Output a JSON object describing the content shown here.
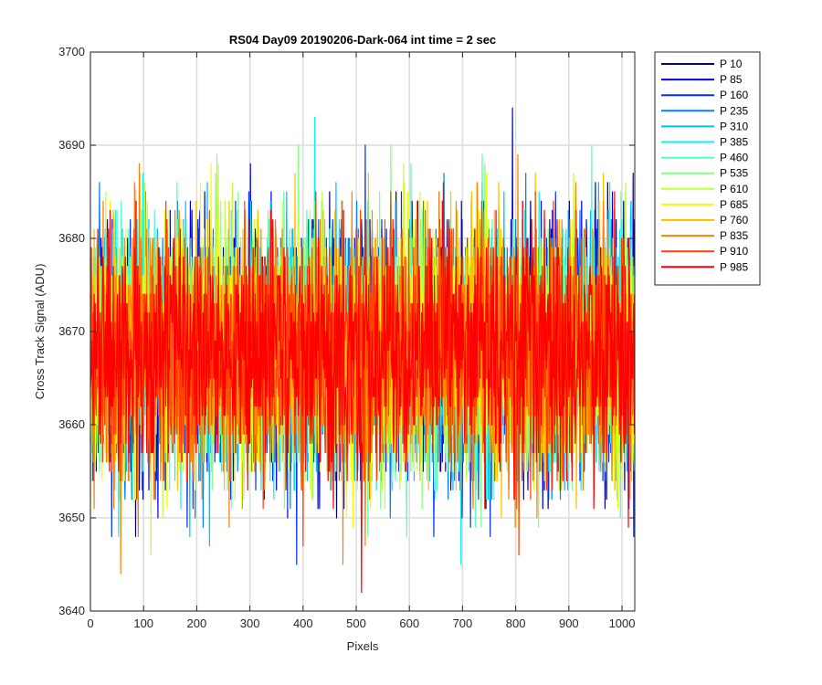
{
  "chart_data": {
    "type": "line",
    "title": "RS04 Day09 20190206-Dark-064 int time = 2 sec",
    "xlabel": "Pixels",
    "ylabel": "Cross Track Signal (ADU)",
    "xlim": [
      0,
      1024
    ],
    "ylim": [
      3640,
      3700
    ],
    "x_ticks": [
      0,
      100,
      200,
      300,
      400,
      500,
      600,
      700,
      800,
      900,
      1000
    ],
    "y_ticks": [
      3640,
      3650,
      3660,
      3670,
      3680,
      3690,
      3700
    ],
    "grid": true,
    "legend_position": "outside-right-top",
    "x_count": 1024,
    "noise": {
      "center": 3668,
      "sigma": 6.5,
      "min_observed": 3642,
      "max_observed": 3698
    },
    "series": [
      {
        "name": "P 10",
        "color": "#00008f"
      },
      {
        "name": "P 85",
        "color": "#0000df"
      },
      {
        "name": "P 160",
        "color": "#0030ff"
      },
      {
        "name": "P 235",
        "color": "#0080ff"
      },
      {
        "name": "P 310",
        "color": "#00bfff"
      },
      {
        "name": "P 385",
        "color": "#10efef"
      },
      {
        "name": "P 460",
        "color": "#50ffbf"
      },
      {
        "name": "P 535",
        "color": "#80ff80"
      },
      {
        "name": "P 610",
        "color": "#c0ff40"
      },
      {
        "name": "P 685",
        "color": "#f0ff00"
      },
      {
        "name": "P 760",
        "color": "#ffc000"
      },
      {
        "name": "P 835",
        "color": "#ff8000"
      },
      {
        "name": "P 910",
        "color": "#ff4000"
      },
      {
        "name": "P 985",
        "color": "#ff0000"
      }
    ]
  }
}
